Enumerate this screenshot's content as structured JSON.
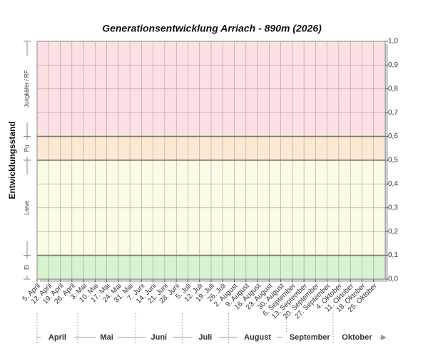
{
  "chart_data": {
    "type": "band",
    "title": "Generationsentwicklung Arriach - 890m (2026)",
    "y_label": "Entwicklungsstand",
    "categories": [
      "5. April",
      "12. April",
      "19. April",
      "26. April",
      "3. Mai",
      "10. Mai",
      "17. Mai",
      "24. Mai",
      "31. Mai",
      "7. Juni",
      "14. Juni",
      "21. Juni",
      "28. Juni",
      "5. Juli",
      "12. Juli",
      "19. Juli",
      "26. Juli",
      "2. August",
      "9. August",
      "16. August",
      "23. August",
      "30. August",
      "6. September",
      "13. September",
      "20. September",
      "27. September",
      "4. Oktober",
      "11. Oktober",
      "18. Oktober",
      "25. Oktober"
    ],
    "months": [
      "April",
      "Mai",
      "Juni",
      "Juli",
      "August",
      "September",
      "Oktober"
    ],
    "stages": [
      {
        "name": "Ei",
        "from": 0,
        "to": 0.1,
        "color": "#d6f2ce"
      },
      {
        "name": "Larve",
        "from": 0.1,
        "to": 0.5,
        "color": "#fcfce6"
      },
      {
        "name": "Pu",
        "from": 0.5,
        "to": 0.6,
        "color": "#fde9d2"
      },
      {
        "name": "Jungkäfer / RF",
        "from": 0.6,
        "to": 1.0,
        "color": "#fde0e3"
      }
    ],
    "ylim": [
      0,
      1.0
    ],
    "yticks": [
      {
        "value": 0,
        "label": "0,0"
      },
      {
        "value": 0.1,
        "label": "0,1"
      },
      {
        "value": 0.2,
        "label": "0,2"
      },
      {
        "value": 0.3,
        "label": "0,3"
      },
      {
        "value": 0.4,
        "label": "0,4"
      },
      {
        "value": 0.5,
        "label": "0,5"
      },
      {
        "value": 0.6,
        "label": "0,6"
      },
      {
        "value": 0.7,
        "label": "0,7"
      },
      {
        "value": 0.8,
        "label": "0,8"
      },
      {
        "value": 0.9,
        "label": "0,9"
      },
      {
        "value": 1.0,
        "label": "1,0"
      }
    ],
    "grid": true
  }
}
